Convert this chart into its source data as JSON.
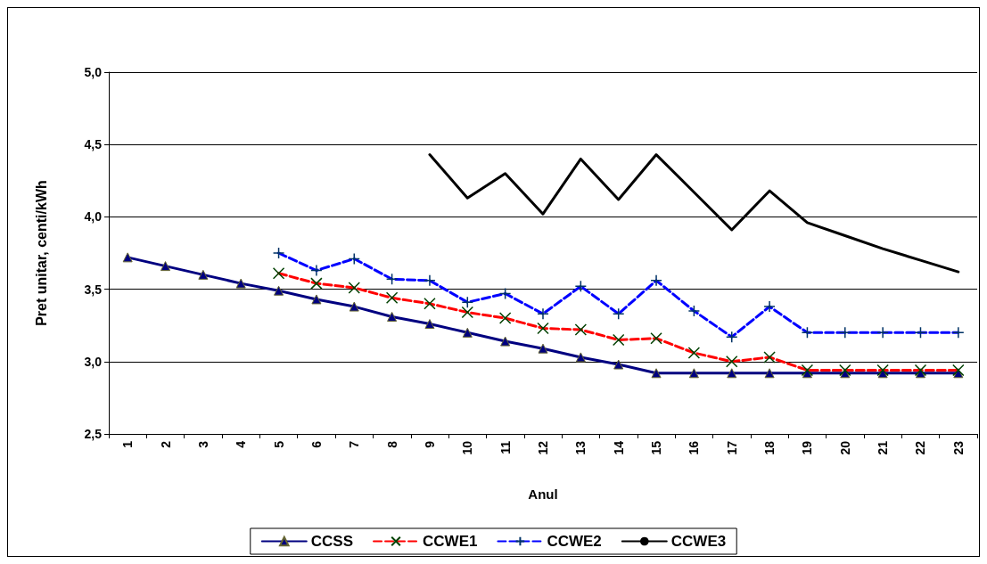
{
  "chart_data": {
    "type": "line",
    "xlabel": "Anul",
    "ylabel": "Pret unitar, centi/kWh",
    "categories": [
      "1",
      "2",
      "3",
      "4",
      "5",
      "6",
      "7",
      "8",
      "9",
      "10",
      "11",
      "12",
      "13",
      "14",
      "15",
      "16",
      "17",
      "18",
      "19",
      "20",
      "21",
      "22",
      "23"
    ],
    "series": [
      {
        "name": "CCSS",
        "color": "#000080",
        "marker": "triangle",
        "line_style": "solid",
        "values": [
          3.72,
          3.66,
          3.6,
          3.54,
          3.49,
          3.43,
          3.38,
          3.31,
          3.26,
          3.2,
          3.14,
          3.09,
          3.03,
          2.98,
          2.92,
          2.92,
          2.92,
          2.92,
          2.92,
          2.92,
          2.92,
          2.92,
          2.92
        ]
      },
      {
        "name": "CCWE1",
        "color": "#ff0000",
        "marker": "cross",
        "line_style": "dashed",
        "values": [
          null,
          null,
          null,
          null,
          3.61,
          3.54,
          3.51,
          3.44,
          3.4,
          3.34,
          3.3,
          3.23,
          3.22,
          3.15,
          3.16,
          3.06,
          3.0,
          3.03,
          2.94,
          2.94,
          2.94,
          2.94,
          2.94
        ]
      },
      {
        "name": "CCWE2",
        "color": "#0000ff",
        "marker": "plus",
        "line_style": "dashed",
        "values": [
          null,
          null,
          null,
          null,
          3.75,
          3.63,
          3.71,
          3.57,
          3.56,
          3.41,
          3.47,
          3.33,
          3.52,
          3.33,
          3.56,
          3.35,
          3.17,
          3.38,
          3.2,
          3.2,
          3.2,
          3.2,
          3.2
        ]
      },
      {
        "name": "CCWE3",
        "color": "#000000",
        "marker": "none",
        "line_style": "solid",
        "values": [
          null,
          null,
          null,
          null,
          null,
          null,
          null,
          null,
          4.43,
          4.13,
          4.3,
          4.02,
          4.4,
          4.12,
          4.43,
          4.17,
          3.91,
          4.18,
          3.96,
          3.87,
          3.78,
          3.7,
          3.62
        ]
      }
    ],
    "ylim": [
      2.5,
      5.0
    ],
    "yticks": [
      {
        "value": 2.5,
        "label": "2,5"
      },
      {
        "value": 3.0,
        "label": "3,0"
      },
      {
        "value": 3.5,
        "label": "3,5"
      },
      {
        "value": 4.0,
        "label": "4,0"
      },
      {
        "value": 4.5,
        "label": "4,5"
      },
      {
        "value": 5.0,
        "label": "5,0"
      }
    ],
    "grid": "y",
    "legend": "bottom"
  }
}
